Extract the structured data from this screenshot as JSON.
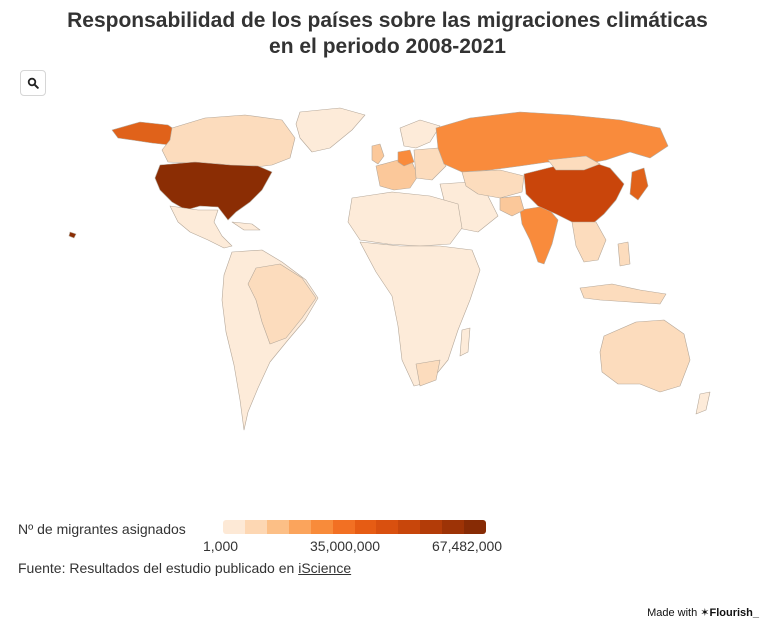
{
  "title_line1": "Responsabilidad de los países sobre las migraciones climáticas",
  "title_line2": "en el periodo 2008-2021",
  "zoom_icon": "search-icon",
  "legend": {
    "title": "Nº de migrantes asignados",
    "min_label": "1,000",
    "mid_label": "35,000,000",
    "max_label": "67,482,000",
    "colors": [
      "#fde9d6",
      "#fdd7b3",
      "#fcbf86",
      "#fba45c",
      "#f88b3a",
      "#f27023",
      "#e65c14",
      "#d9500f",
      "#c8460b",
      "#b33c08",
      "#9d3306",
      "#872b05"
    ]
  },
  "source": {
    "prefix": "Fuente: Resultados del estudio publicado en ",
    "link_text": "iScience"
  },
  "credit": {
    "prefix": "Made with ",
    "brand": "✶Flourish_"
  },
  "colors": {
    "very_low": "#fdebd9",
    "low": "#fcdcbd",
    "medium_low": "#fbc89a",
    "medium": "#f98b3c",
    "high": "#e0621a",
    "very_high": "#c9450b",
    "max": "#8b2d04",
    "border": "#b5a89a"
  }
}
